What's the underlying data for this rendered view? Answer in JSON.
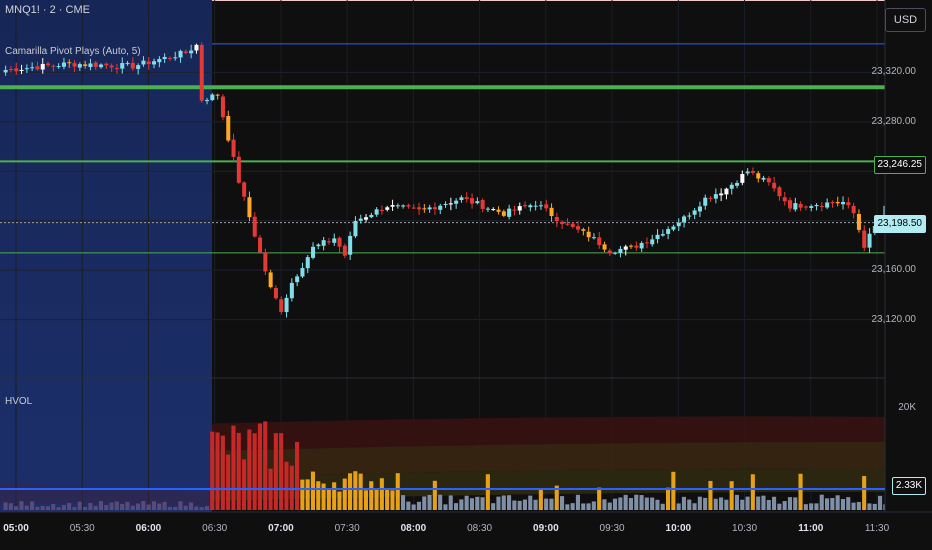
{
  "header": {
    "symbol": "MNQ1! · 2 · CME",
    "indicator": "Camarilla Pivot Plays (Auto, 5)",
    "currency": "USD"
  },
  "volume_pane": {
    "title": "HVOL",
    "axis_label": "20K",
    "current_volume": "2.33K"
  },
  "price_axis": {
    "labels": [
      "23,320.00",
      "23,280.00",
      "23,160.00",
      "23,120.00"
    ],
    "tags": [
      {
        "label": "23,246.25",
        "price": 23246.25,
        "bg": "#0f0f0f",
        "border": "#4caf50",
        "fg": "#ffffff"
      },
      {
        "label": "23,198.50",
        "price": 23198.5,
        "bg": "#b2ebf2",
        "border": "#b2ebf2",
        "fg": "#000000"
      }
    ]
  },
  "time_axis": {
    "labels": [
      "05:00",
      "05:30",
      "06:00",
      "06:30",
      "07:00",
      "07:30",
      "08:00",
      "08:30",
      "09:00",
      "09:30",
      "10:00",
      "10:30",
      "11:00",
      "11:30"
    ],
    "bold": [
      true,
      false,
      true,
      false,
      true,
      false,
      true,
      false,
      true,
      false,
      true,
      false,
      true,
      false
    ]
  },
  "colors": {
    "background": "#0f0f0f",
    "session_shade": "#1a2a5e",
    "up": "#80deea",
    "down": "#e53935",
    "up_alt": "#ffffff",
    "down_alt": "#ffa726",
    "pivot_green": "#4caf50",
    "pivot_blue": "#2962ff",
    "vol_high": "#c62828",
    "vol_mid": "#e6a117",
    "vol_low": "#7e8fa6"
  },
  "chart_data": {
    "type": "candlestick",
    "symbol": "MNQ1!",
    "interval_minutes": 2,
    "price_range": [
      23100,
      23360
    ],
    "pivot_levels": [
      {
        "price": 23343,
        "color": "#2962ff",
        "width": 1
      },
      {
        "price": 23308,
        "color": "#4caf50",
        "width": 4
      },
      {
        "price": 23248,
        "color": "#4caf50",
        "width": 2
      },
      {
        "price": 23198.5,
        "color": "#9e9e9e",
        "width": 1,
        "dotted": true
      },
      {
        "price": 23174,
        "color": "#4caf50",
        "width": 1
      }
    ],
    "waypoints": [
      [
        0,
        23322
      ],
      [
        12,
        23327
      ],
      [
        24,
        23325
      ],
      [
        34,
        23336
      ],
      [
        36,
        23342
      ],
      [
        37,
        23298
      ],
      [
        40,
        23302
      ],
      [
        44,
        23232
      ],
      [
        50,
        23145
      ],
      [
        52,
        23128
      ],
      [
        54,
        23150
      ],
      [
        58,
        23178
      ],
      [
        62,
        23186
      ],
      [
        64,
        23172
      ],
      [
        66,
        23200
      ],
      [
        72,
        23212
      ],
      [
        78,
        23208
      ],
      [
        86,
        23218
      ],
      [
        94,
        23206
      ],
      [
        100,
        23214
      ],
      [
        106,
        23196
      ],
      [
        110,
        23188
      ],
      [
        114,
        23176
      ],
      [
        118,
        23178
      ],
      [
        122,
        23186
      ],
      [
        128,
        23202
      ],
      [
        132,
        23218
      ],
      [
        136,
        23226
      ],
      [
        140,
        23240
      ],
      [
        144,
        23230
      ],
      [
        148,
        23212
      ],
      [
        154,
        23214
      ],
      [
        158,
        23215
      ],
      [
        160,
        23206
      ],
      [
        162,
        23180
      ],
      [
        166,
        23210
      ]
    ],
    "volume_max_k": 22
  }
}
